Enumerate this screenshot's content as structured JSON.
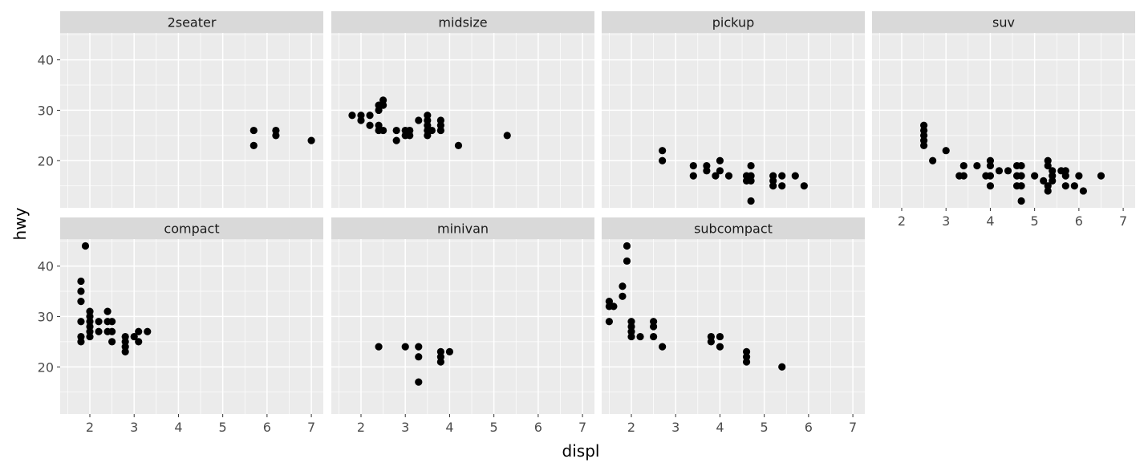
{
  "chart_data": {
    "type": "scatter",
    "facet_layout": "wrap",
    "xlabel": "displ",
    "ylabel": "hwy",
    "xlim": [
      1.33,
      7.27
    ],
    "ylim": [
      10.65,
      45.35
    ],
    "x_ticks": [
      "2",
      "3",
      "4",
      "5",
      "6",
      "7"
    ],
    "y_ticks": [
      "20",
      "30",
      "40"
    ],
    "grid": true,
    "colors": {
      "panel": "#ebebeb",
      "grid": "#ffffff",
      "strip": "#d9d9d9",
      "point": "#000000"
    },
    "facets": [
      {
        "name": "2seater",
        "points": [
          [
            5.7,
            26
          ],
          [
            5.7,
            23
          ],
          [
            6.2,
            26
          ],
          [
            6.2,
            25
          ],
          [
            7.0,
            24
          ]
        ]
      },
      {
        "name": "midsize",
        "points": [
          [
            1.8,
            29
          ],
          [
            2.0,
            29
          ],
          [
            2.0,
            28
          ],
          [
            2.2,
            27
          ],
          [
            2.2,
            29
          ],
          [
            2.4,
            31
          ],
          [
            2.4,
            30
          ],
          [
            2.4,
            27
          ],
          [
            2.4,
            26
          ],
          [
            2.5,
            32
          ],
          [
            2.5,
            31
          ],
          [
            2.5,
            26
          ],
          [
            2.8,
            26
          ],
          [
            2.8,
            24
          ],
          [
            3.0,
            26
          ],
          [
            3.0,
            25
          ],
          [
            3.1,
            26
          ],
          [
            3.1,
            25
          ],
          [
            3.3,
            28
          ],
          [
            3.5,
            29
          ],
          [
            3.5,
            28
          ],
          [
            3.5,
            27
          ],
          [
            3.5,
            26
          ],
          [
            3.5,
            25
          ],
          [
            3.6,
            26
          ],
          [
            3.8,
            28
          ],
          [
            3.8,
            27
          ],
          [
            3.8,
            26
          ],
          [
            4.2,
            23
          ],
          [
            5.3,
            25
          ]
        ]
      },
      {
        "name": "pickup",
        "points": [
          [
            2.7,
            22
          ],
          [
            2.7,
            20
          ],
          [
            3.4,
            19
          ],
          [
            3.4,
            17
          ],
          [
            3.7,
            19
          ],
          [
            3.7,
            18
          ],
          [
            3.9,
            17
          ],
          [
            4.0,
            20
          ],
          [
            4.0,
            18
          ],
          [
            4.2,
            17
          ],
          [
            4.6,
            17
          ],
          [
            4.6,
            16
          ],
          [
            4.7,
            19
          ],
          [
            4.7,
            17
          ],
          [
            4.7,
            16
          ],
          [
            4.7,
            12
          ],
          [
            5.2,
            17
          ],
          [
            5.2,
            16
          ],
          [
            5.2,
            15
          ],
          [
            5.4,
            17
          ],
          [
            5.4,
            15
          ],
          [
            5.7,
            17
          ],
          [
            5.9,
            15
          ]
        ]
      },
      {
        "name": "suv",
        "points": [
          [
            2.5,
            27
          ],
          [
            2.5,
            26
          ],
          [
            2.5,
            25
          ],
          [
            2.5,
            24
          ],
          [
            2.5,
            23
          ],
          [
            2.7,
            20
          ],
          [
            3.0,
            22
          ],
          [
            3.3,
            17
          ],
          [
            3.4,
            19
          ],
          [
            3.4,
            17
          ],
          [
            3.7,
            19
          ],
          [
            3.9,
            17
          ],
          [
            4.0,
            20
          ],
          [
            4.0,
            19
          ],
          [
            4.0,
            17
          ],
          [
            4.0,
            15
          ],
          [
            4.2,
            18
          ],
          [
            4.4,
            18
          ],
          [
            4.6,
            19
          ],
          [
            4.6,
            17
          ],
          [
            4.6,
            15
          ],
          [
            4.7,
            19
          ],
          [
            4.7,
            17
          ],
          [
            4.7,
            15
          ],
          [
            4.7,
            12
          ],
          [
            5.0,
            17
          ],
          [
            5.2,
            16
          ],
          [
            5.3,
            20
          ],
          [
            5.3,
            19
          ],
          [
            5.3,
            15
          ],
          [
            5.3,
            14
          ],
          [
            5.4,
            18
          ],
          [
            5.4,
            17
          ],
          [
            5.4,
            16
          ],
          [
            5.6,
            18
          ],
          [
            5.7,
            18
          ],
          [
            5.7,
            17
          ],
          [
            5.7,
            15
          ],
          [
            5.9,
            15
          ],
          [
            6.0,
            17
          ],
          [
            6.1,
            14
          ],
          [
            6.5,
            17
          ]
        ]
      },
      {
        "name": "compact",
        "points": [
          [
            1.8,
            37
          ],
          [
            1.8,
            35
          ],
          [
            1.8,
            33
          ],
          [
            1.8,
            29
          ],
          [
            1.8,
            26
          ],
          [
            1.8,
            25
          ],
          [
            1.9,
            44
          ],
          [
            2.0,
            31
          ],
          [
            2.0,
            30
          ],
          [
            2.0,
            29
          ],
          [
            2.0,
            28
          ],
          [
            2.0,
            27
          ],
          [
            2.0,
            26
          ],
          [
            2.2,
            29
          ],
          [
            2.2,
            27
          ],
          [
            2.4,
            31
          ],
          [
            2.4,
            29
          ],
          [
            2.4,
            27
          ],
          [
            2.5,
            29
          ],
          [
            2.5,
            27
          ],
          [
            2.5,
            25
          ],
          [
            2.8,
            26
          ],
          [
            2.8,
            25
          ],
          [
            2.8,
            24
          ],
          [
            2.8,
            23
          ],
          [
            3.0,
            26
          ],
          [
            3.1,
            27
          ],
          [
            3.1,
            25
          ],
          [
            3.3,
            27
          ]
        ]
      },
      {
        "name": "minivan",
        "points": [
          [
            2.4,
            24
          ],
          [
            3.0,
            24
          ],
          [
            3.3,
            24
          ],
          [
            3.3,
            22
          ],
          [
            3.3,
            17
          ],
          [
            3.8,
            23
          ],
          [
            3.8,
            22
          ],
          [
            3.8,
            21
          ],
          [
            4.0,
            23
          ]
        ]
      },
      {
        "name": "subcompact",
        "points": [
          [
            1.5,
            33
          ],
          [
            1.5,
            32
          ],
          [
            1.5,
            29
          ],
          [
            1.6,
            32
          ],
          [
            1.8,
            36
          ],
          [
            1.8,
            34
          ],
          [
            1.9,
            44
          ],
          [
            1.9,
            41
          ],
          [
            2.0,
            29
          ],
          [
            2.0,
            28
          ],
          [
            2.0,
            27
          ],
          [
            2.0,
            26
          ],
          [
            2.2,
            26
          ],
          [
            2.5,
            29
          ],
          [
            2.5,
            28
          ],
          [
            2.5,
            26
          ],
          [
            2.7,
            24
          ],
          [
            3.8,
            26
          ],
          [
            3.8,
            25
          ],
          [
            4.0,
            26
          ],
          [
            4.0,
            24
          ],
          [
            4.6,
            23
          ],
          [
            4.6,
            22
          ],
          [
            4.6,
            21
          ],
          [
            5.4,
            20
          ]
        ]
      }
    ]
  }
}
